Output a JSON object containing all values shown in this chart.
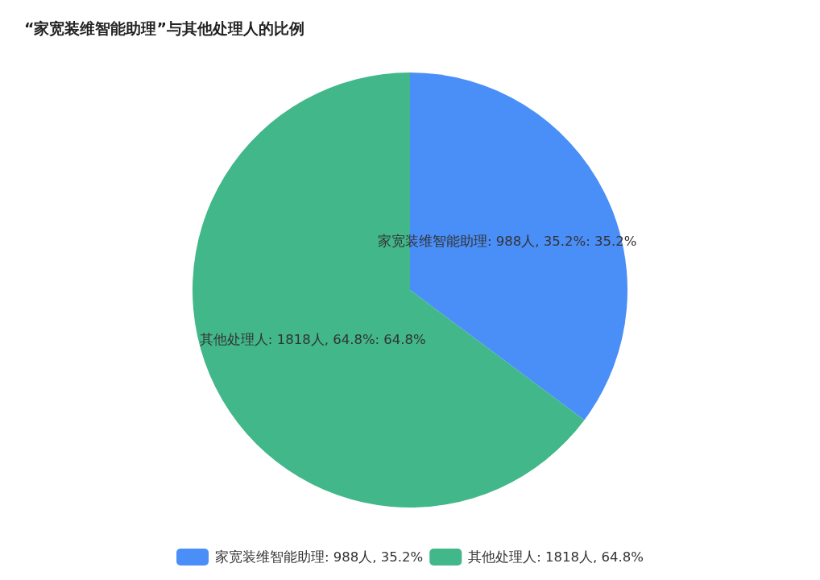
{
  "chart_data": {
    "type": "pie",
    "title": "“家宽装维智能助理”与其他处理人的比例",
    "categories": [
      "家宽装维智能助理: 988人, 35.2%",
      "其他处理人: 1818人, 64.8%"
    ],
    "values": [
      35.2,
      64.8
    ],
    "colors": [
      "#4a8ef8",
      "#41b78a"
    ],
    "value_labels": [
      "家宽装维智能助理: 988人, 35.2%: 35.2%",
      "其他处理人: 1818人, 64.8%: 64.8%"
    ],
    "legend": "bottom"
  }
}
